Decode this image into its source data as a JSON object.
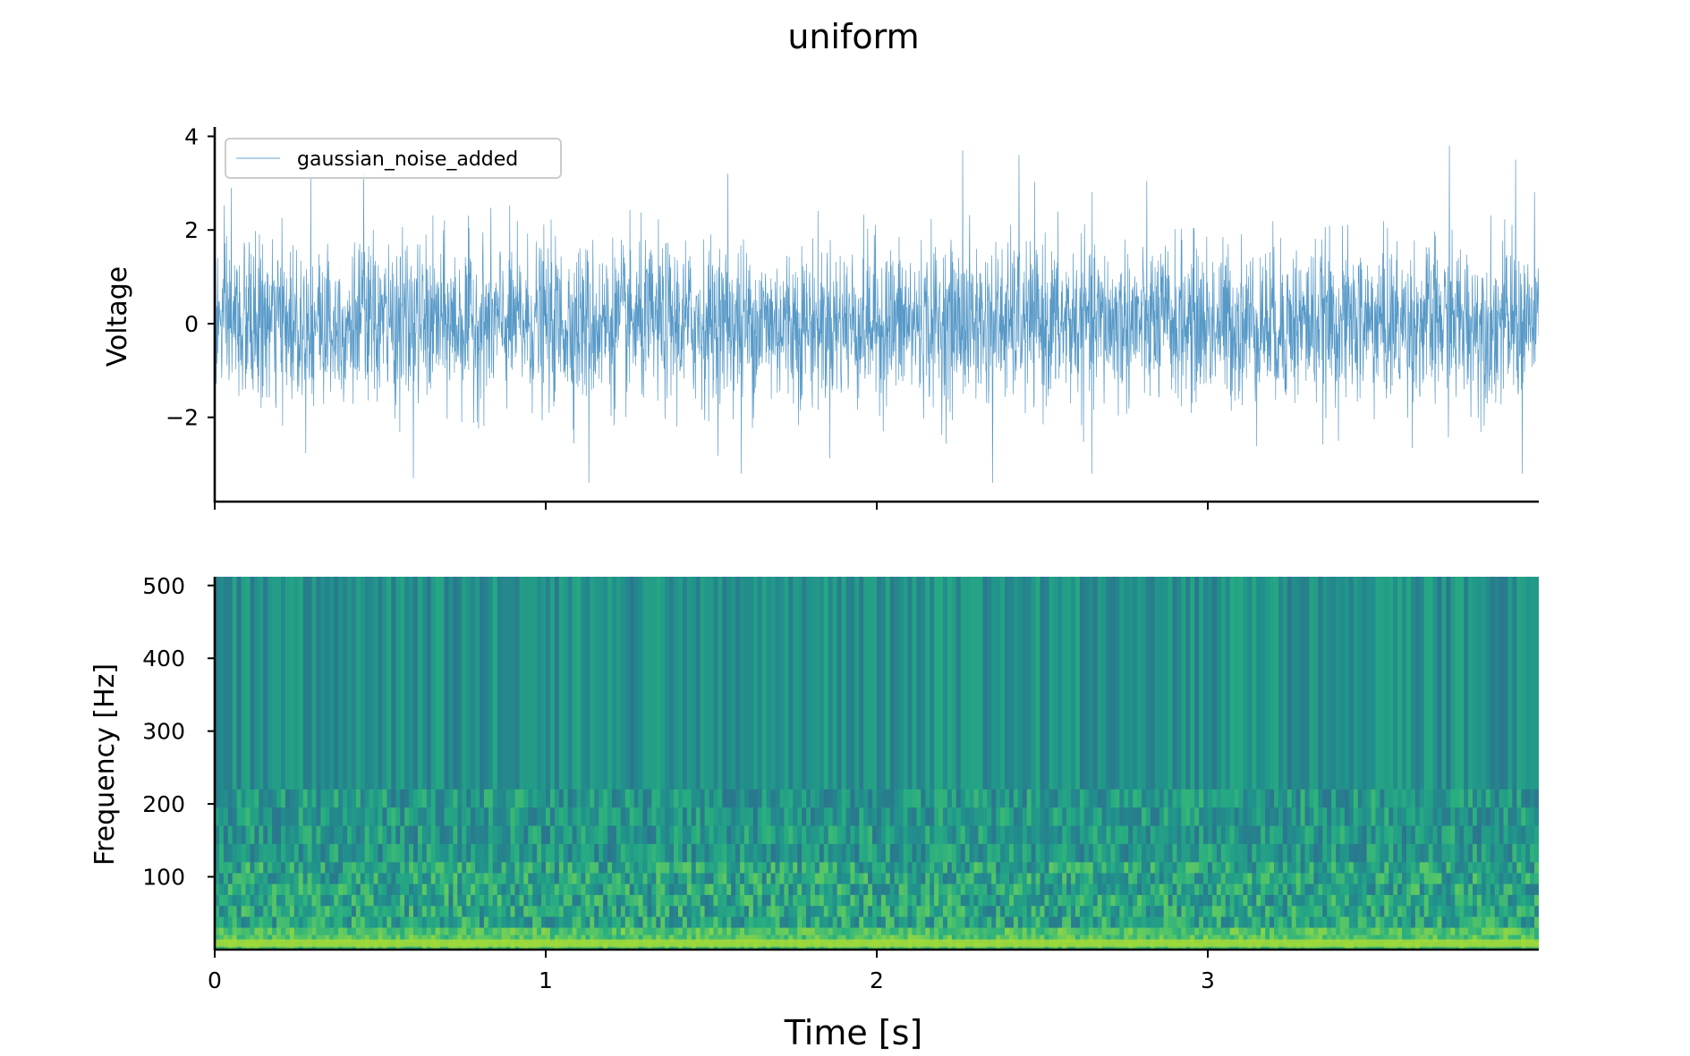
{
  "chart_data": [
    {
      "type": "line",
      "title": "uniform",
      "xlabel": "",
      "ylabel": "Voltage",
      "xlim": [
        0,
        4
      ],
      "ylim": [
        -3.8,
        4.2
      ],
      "xticks": [
        0,
        1,
        2,
        3
      ],
      "xtick_labels_shown": false,
      "yticks": [
        -2,
        0,
        2,
        4
      ],
      "ytick_labels": [
        "−2",
        "0",
        "2",
        "4"
      ],
      "legend": {
        "placement": "upper-left",
        "entries": [
          "gaussian_noise_added"
        ]
      },
      "series": [
        {
          "name": "gaussian_noise_added",
          "color": "#1f77b4",
          "distribution": "gaussian noise, mean 0, std ~0.85",
          "x_range": [
            0,
            4
          ],
          "y_range_observed": [
            -3.4,
            3.8
          ],
          "sample_points": [
            {
              "x": 0.05,
              "y": 2.9
            },
            {
              "x": 0.29,
              "y": 3.1
            },
            {
              "x": 0.45,
              "y": 3.2
            },
            {
              "x": 0.6,
              "y": -3.3
            },
            {
              "x": 1.13,
              "y": -3.4
            },
            {
              "x": 1.55,
              "y": 3.2
            },
            {
              "x": 1.59,
              "y": -3.2
            },
            {
              "x": 2.26,
              "y": 3.7
            },
            {
              "x": 2.43,
              "y": 3.6
            },
            {
              "x": 2.35,
              "y": -3.4
            },
            {
              "x": 2.65,
              "y": -3.2
            },
            {
              "x": 3.73,
              "y": 3.8
            },
            {
              "x": 3.93,
              "y": 3.5
            },
            {
              "x": 3.95,
              "y": -3.2
            }
          ]
        }
      ]
    },
    {
      "type": "heatmap",
      "xlabel": "Time [s]",
      "ylabel": "Frequency [Hz]",
      "xlim": [
        0,
        4
      ],
      "ylim": [
        0,
        512
      ],
      "xticks": [
        0,
        1,
        2,
        3
      ],
      "xtick_labels": [
        "0",
        "1",
        "2",
        "3"
      ],
      "yticks": [
        100,
        200,
        300,
        400,
        500
      ],
      "ytick_labels": [
        "100",
        "200",
        "300",
        "400",
        "500"
      ],
      "colormap": "viridis",
      "colormap_range_shown": [
        0.35,
        0.8
      ],
      "description_of_values": "bright yellow-green band below ~30 Hz; mottled green patches from 30 to 200 Hz; fine vertical striations above 200 Hz"
    }
  ]
}
